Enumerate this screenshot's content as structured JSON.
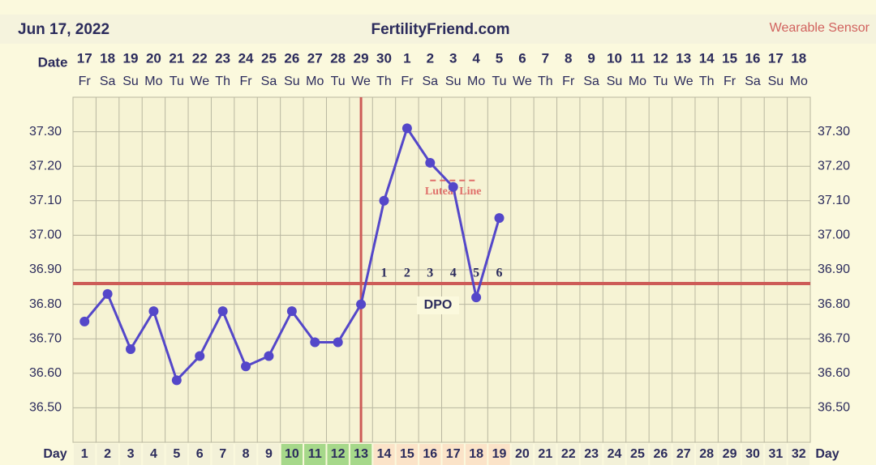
{
  "chart_data": {
    "type": "line",
    "date": "Jun 17, 2022",
    "title": "FertilityFriend.com",
    "source": "Wearable Sensor",
    "date_label": "Date",
    "day_label": "Day",
    "categories": [
      1,
      2,
      3,
      4,
      5,
      6,
      7,
      8,
      9,
      10,
      11,
      12,
      13,
      14,
      15,
      16,
      17,
      18,
      19,
      20,
      21,
      22,
      23,
      24,
      25,
      26,
      27,
      28,
      29,
      30,
      31,
      32
    ],
    "dates": [
      17,
      18,
      19,
      20,
      21,
      22,
      23,
      24,
      25,
      26,
      27,
      28,
      29,
      30,
      1,
      2,
      3,
      4,
      5,
      6,
      7,
      8,
      9,
      10,
      11,
      12,
      13,
      14,
      15,
      16,
      17,
      18
    ],
    "weekdays": [
      "Fr",
      "Sa",
      "Su",
      "Mo",
      "Tu",
      "We",
      "Th",
      "Fr",
      "Sa",
      "Su",
      "Mo",
      "Tu",
      "We",
      "Th",
      "Fr",
      "Sa",
      "Su",
      "Mo",
      "Tu",
      "We",
      "Th",
      "Fr",
      "Sa",
      "Su",
      "Mo",
      "Tu",
      "We",
      "Th",
      "Fr",
      "Sa",
      "Su",
      "Mo"
    ],
    "values": [
      36.75,
      36.83,
      36.67,
      36.78,
      36.58,
      36.65,
      36.78,
      36.62,
      36.65,
      36.78,
      36.69,
      36.69,
      36.8,
      37.1,
      37.31,
      37.21,
      37.14,
      36.82,
      37.05,
      null,
      null,
      null,
      null,
      null,
      null,
      null,
      null,
      null,
      null,
      null,
      null,
      null
    ],
    "color": "#5447c9",
    "ylim": [
      36.4,
      37.4
    ],
    "yticks": [
      {
        "value": 36.5,
        "label": "36.50"
      },
      {
        "value": 36.6,
        "label": "36.60"
      },
      {
        "value": 36.7,
        "label": "36.70"
      },
      {
        "value": 36.8,
        "label": "36.80"
      },
      {
        "value": 36.9,
        "label": "36.90"
      },
      {
        "value": 37.0,
        "label": "37.00"
      },
      {
        "value": 37.1,
        "label": "37.10"
      },
      {
        "value": 37.2,
        "label": "37.20"
      },
      {
        "value": 37.3,
        "label": "37.30"
      }
    ],
    "grid": true,
    "coverline": 36.86,
    "ovulation_day": 13,
    "line_color": "#cd5b57",
    "luteal_line": {
      "value": 37.14,
      "from_day": 16,
      "to_day": 18,
      "label": "Luteal Line"
    },
    "dpo": {
      "labels": [
        1,
        2,
        3,
        4,
        5,
        6
      ],
      "start_day": 14,
      "label": "DPO"
    },
    "fertile_days": [
      10,
      11,
      12,
      13
    ],
    "fertile_color": "#a6d88a",
    "post_ovulation_days": [
      14,
      15,
      16,
      17,
      18,
      19
    ],
    "post_ovulation_color": "#fbe3c8"
  }
}
